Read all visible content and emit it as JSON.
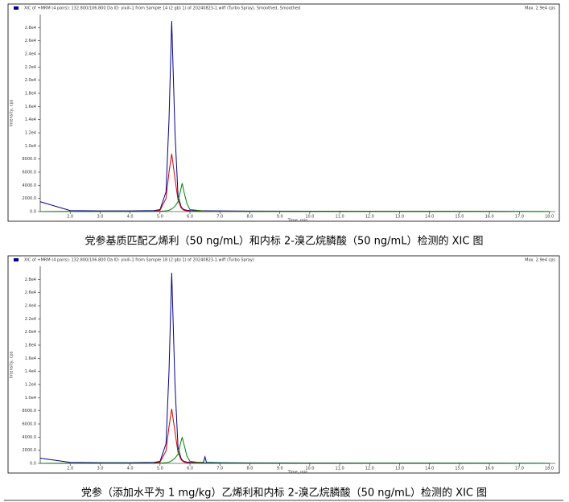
{
  "chart_data": [
    {
      "type": "line",
      "title": "XIC of +MRM (4 pairs): 132.800/106.800 Da ID: yixili-1 from Sample 14 (2 gb) 1) of 20240823-1.wiff (Turbo Spray), Smoothed, Smoothed",
      "max_label": "Max. 2.9e4 cps",
      "x_label": "Time, min",
      "y_label": "Intensity, cps",
      "caption": "党参基质匹配乙烯利（50 ng/mL）和内标 2-溴乙烷膦酸（50 ng/mL）检测的 XIC 图",
      "xlim": [
        1.0,
        18.2
      ],
      "ylim": [
        0,
        30000
      ],
      "xticks": [
        {
          "value": 2,
          "label": "2.0"
        },
        {
          "value": 3,
          "label": "3.0"
        },
        {
          "value": 4,
          "label": "4.0"
        },
        {
          "value": 5,
          "label": "5.0"
        },
        {
          "value": 6,
          "label": "6.0"
        },
        {
          "value": 7,
          "label": "7.0"
        },
        {
          "value": 8,
          "label": "8.0"
        },
        {
          "value": 9,
          "label": "9.0"
        },
        {
          "value": 10,
          "label": "10.0"
        },
        {
          "value": 11,
          "label": "11.0"
        },
        {
          "value": 12,
          "label": "12.0"
        },
        {
          "value": 13,
          "label": "13.0"
        },
        {
          "value": 14,
          "label": "14.0"
        },
        {
          "value": 15,
          "label": "15.0"
        },
        {
          "value": 16,
          "label": "16.0"
        },
        {
          "value": 17,
          "label": "17.0"
        },
        {
          "value": 18,
          "label": "18.0"
        }
      ],
      "yticks": [
        {
          "value": 0,
          "label": "0.0"
        },
        {
          "value": 2000,
          "label": "2000.0"
        },
        {
          "value": 4000,
          "label": "4000.0"
        },
        {
          "value": 6000,
          "label": "6000.0"
        },
        {
          "value": 8000,
          "label": "8000.0"
        },
        {
          "value": 10000,
          "label": "1.0e4"
        },
        {
          "value": 12000,
          "label": "1.2e4"
        },
        {
          "value": 14000,
          "label": "1.4e4"
        },
        {
          "value": 16000,
          "label": "1.6e4"
        },
        {
          "value": 18000,
          "label": "1.8e4"
        },
        {
          "value": 20000,
          "label": "2.0e4"
        },
        {
          "value": 22000,
          "label": "2.2e4"
        },
        {
          "value": 24000,
          "label": "2.4e4"
        },
        {
          "value": 26000,
          "label": "2.6e4"
        },
        {
          "value": 28000,
          "label": "2.8e4"
        }
      ],
      "x": [
        1.0,
        2.0,
        3.0,
        4.0,
        4.8,
        5.0,
        5.2,
        5.3,
        5.39,
        5.5,
        5.6,
        5.7,
        5.74,
        5.8,
        5.9,
        6.0,
        6.5,
        7.0,
        8.0,
        10.0,
        12.0,
        14.0,
        16.0,
        18.0
      ],
      "series": [
        {
          "color": "#00008b",
          "values": [
            1500,
            150,
            100,
            100,
            150,
            300,
            3000,
            14000,
            29000,
            12000,
            2500,
            800,
            500,
            300,
            200,
            150,
            120,
            100,
            80,
            60,
            50,
            40,
            30,
            20
          ]
        },
        {
          "color": "#d40000",
          "values": [
            0,
            20,
            20,
            20,
            50,
            200,
            2000,
            6000,
            8800,
            5000,
            1800,
            600,
            400,
            200,
            100,
            50,
            20,
            20,
            10,
            10,
            10,
            10,
            10,
            0
          ]
        },
        {
          "color": "#008000",
          "values": [
            0,
            10,
            10,
            10,
            20,
            50,
            100,
            200,
            400,
            800,
            1500,
            3500,
            4300,
            3000,
            1200,
            300,
            80,
            40,
            20,
            10,
            10,
            10,
            10,
            0
          ]
        }
      ]
    },
    {
      "type": "line",
      "title": "XIC of +MRM (4 pairs): 132.800/106.800 Da ID: yixili-1 from Sample 18 (2 gb) 1) of 20240823-1.wiff (Turbo Spray)",
      "max_label": "Max. 2.9e4 cps",
      "x_label": "Time, min",
      "y_label": "Intensity, cps",
      "caption": "党参（添加水平为 1 mg/kg）乙烯利和内标 2-溴乙烷膦酸（50 ng/mL）检测的 XIC 图",
      "xlim": [
        1.0,
        18.2
      ],
      "ylim": [
        0,
        30000
      ],
      "xticks": [
        {
          "value": 2,
          "label": "2.0"
        },
        {
          "value": 3,
          "label": "3.0"
        },
        {
          "value": 4,
          "label": "4.0"
        },
        {
          "value": 5,
          "label": "5.0"
        },
        {
          "value": 6,
          "label": "6.0"
        },
        {
          "value": 7,
          "label": "7.0"
        },
        {
          "value": 8,
          "label": "8.0"
        },
        {
          "value": 9,
          "label": "9.0"
        },
        {
          "value": 10,
          "label": "10.0"
        },
        {
          "value": 11,
          "label": "11.0"
        },
        {
          "value": 12,
          "label": "12.0"
        },
        {
          "value": 13,
          "label": "13.0"
        },
        {
          "value": 14,
          "label": "14.0"
        },
        {
          "value": 15,
          "label": "15.0"
        },
        {
          "value": 16,
          "label": "16.0"
        },
        {
          "value": 17,
          "label": "17.0"
        },
        {
          "value": 18,
          "label": "18.0"
        }
      ],
      "yticks": [
        {
          "value": 0,
          "label": "0.0"
        },
        {
          "value": 2000,
          "label": "2000.0"
        },
        {
          "value": 4000,
          "label": "4000.0"
        },
        {
          "value": 6000,
          "label": "6000.0"
        },
        {
          "value": 8000,
          "label": "8000.0"
        },
        {
          "value": 10000,
          "label": "1.0e4"
        },
        {
          "value": 12000,
          "label": "1.2e4"
        },
        {
          "value": 14000,
          "label": "1.4e4"
        },
        {
          "value": 16000,
          "label": "1.6e4"
        },
        {
          "value": 18000,
          "label": "1.8e4"
        },
        {
          "value": 20000,
          "label": "2.0e4"
        },
        {
          "value": 22000,
          "label": "2.2e4"
        },
        {
          "value": 24000,
          "label": "2.4e4"
        },
        {
          "value": 26000,
          "label": "2.6e4"
        },
        {
          "value": 28000,
          "label": "2.8e4"
        }
      ],
      "x": [
        1.0,
        2.0,
        3.0,
        4.0,
        4.8,
        5.0,
        5.2,
        5.3,
        5.39,
        5.5,
        5.6,
        5.7,
        5.74,
        5.8,
        5.9,
        6.0,
        6.45,
        6.5,
        6.55,
        7.0,
        8.0,
        10.0,
        12.0,
        14.0,
        16.0,
        18.0
      ],
      "series": [
        {
          "color": "#00008b",
          "values": [
            800,
            150,
            100,
            100,
            150,
            300,
            3000,
            14000,
            29000,
            12000,
            2500,
            800,
            500,
            300,
            200,
            150,
            150,
            1000,
            150,
            100,
            80,
            60,
            50,
            40,
            30,
            20
          ]
        },
        {
          "color": "#d40000",
          "values": [
            0,
            20,
            20,
            20,
            50,
            200,
            1900,
            5600,
            8300,
            4800,
            1700,
            600,
            400,
            200,
            100,
            50,
            20,
            20,
            20,
            20,
            10,
            10,
            10,
            10,
            10,
            0
          ]
        },
        {
          "color": "#008000",
          "values": [
            0,
            10,
            10,
            10,
            20,
            50,
            100,
            200,
            400,
            800,
            1400,
            3300,
            4000,
            2900,
            1100,
            300,
            80,
            80,
            80,
            40,
            20,
            10,
            10,
            10,
            10,
            0
          ]
        }
      ]
    }
  ]
}
